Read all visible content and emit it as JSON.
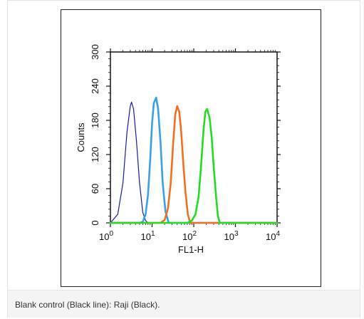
{
  "caption": "Blank control (Black line): Raji (Black).",
  "chart_data": {
    "type": "line",
    "title": "",
    "xlabel": "FL1-H",
    "ylabel": "Counts",
    "xscale": "log",
    "xlim": [
      1,
      10000
    ],
    "ylim": [
      0,
      300
    ],
    "x_ticks": [
      {
        "value": 1,
        "base": "10",
        "exp": "0"
      },
      {
        "value": 10,
        "base": "10",
        "exp": "1"
      },
      {
        "value": 100,
        "base": "10",
        "exp": "2"
      },
      {
        "value": 1000,
        "base": "10",
        "exp": "3"
      },
      {
        "value": 10000,
        "base": "10",
        "exp": "4"
      }
    ],
    "y_ticks": [
      "0",
      "60",
      "120",
      "180",
      "240",
      "300"
    ],
    "grid": false,
    "series": [
      {
        "color": "#1a1aa8",
        "x": [
          1,
          1.5,
          2,
          2.5,
          3,
          3.2,
          3.6,
          4.2,
          5,
          6,
          7,
          8,
          10000
        ],
        "y": [
          0,
          15,
          70,
          160,
          205,
          212,
          200,
          145,
          70,
          18,
          4,
          0,
          0
        ]
      },
      {
        "color": "#3aa0e8",
        "x": [
          1,
          5,
          6,
          7,
          8,
          9,
          10,
          11,
          12.5,
          14,
          16,
          18,
          21,
          25,
          10000
        ],
        "y": [
          0,
          0,
          2,
          15,
          50,
          110,
          175,
          210,
          220,
          200,
          140,
          70,
          20,
          0,
          0
        ]
      },
      {
        "color": "#f07020",
        "x": [
          1,
          16,
          20,
          24,
          28,
          32,
          36,
          40,
          45,
          50,
          56,
          63,
          72,
          82,
          10000
        ],
        "y": [
          0,
          0,
          5,
          25,
          70,
          140,
          190,
          205,
          195,
          160,
          105,
          55,
          15,
          0,
          0
        ]
      },
      {
        "color": "#22dd22",
        "x": [
          1,
          70,
          90,
          110,
          130,
          150,
          170,
          190,
          210,
          240,
          270,
          300,
          340,
          380,
          420,
          10000
        ],
        "y": [
          0,
          0,
          4,
          15,
          45,
          100,
          160,
          195,
          200,
          185,
          150,
          100,
          50,
          12,
          0,
          0
        ]
      }
    ]
  }
}
